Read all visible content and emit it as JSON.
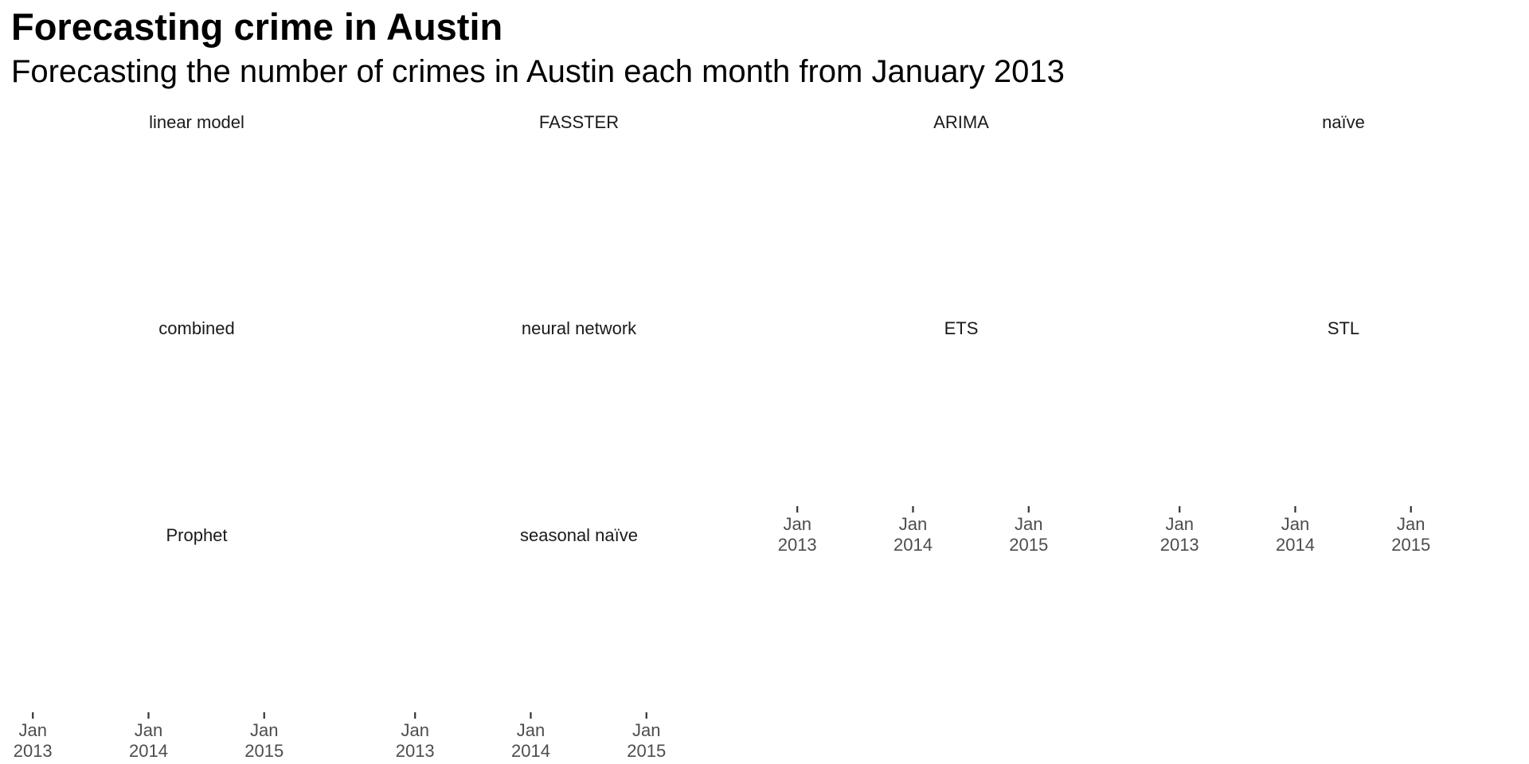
{
  "header": {
    "title": "Forecasting crime in Austin",
    "subtitle": "Forecasting the number of crimes in Austin each month from January 2013"
  },
  "chart_data": {
    "type": "line",
    "title": "Forecasting crime in Austin",
    "subtitle": "Forecasting the number of crimes in Austin each month from January 2013",
    "xlabel": "",
    "ylabel": "",
    "grid": false,
    "legend": "none",
    "facet_layout": {
      "rows": 3,
      "cols": 4
    },
    "facets": [
      {
        "label": "linear model",
        "row": 0,
        "col": 0
      },
      {
        "label": "FASSTER",
        "row": 0,
        "col": 1
      },
      {
        "label": "ARIMA",
        "row": 0,
        "col": 2
      },
      {
        "label": "naïve",
        "row": 0,
        "col": 3
      },
      {
        "label": "combined",
        "row": 1,
        "col": 0
      },
      {
        "label": "neural network",
        "row": 1,
        "col": 1
      },
      {
        "label": "ETS",
        "row": 1,
        "col": 2,
        "x_axis_shown": true
      },
      {
        "label": "STL",
        "row": 1,
        "col": 3,
        "x_axis_shown": true
      },
      {
        "label": "Prophet",
        "row": 2,
        "col": 0,
        "x_axis_shown": true
      },
      {
        "label": "seasonal naïve",
        "row": 2,
        "col": 1,
        "x_axis_shown": true
      }
    ],
    "x_ticks": [
      {
        "value": "2013-01",
        "line1": "Jan",
        "line2": "2013"
      },
      {
        "value": "2014-01",
        "line1": "Jan",
        "line2": "2014"
      },
      {
        "value": "2015-01",
        "line1": "Jan",
        "line2": "2015"
      }
    ],
    "xlim": [
      "2012-11",
      "2016-01"
    ],
    "series": []
  }
}
